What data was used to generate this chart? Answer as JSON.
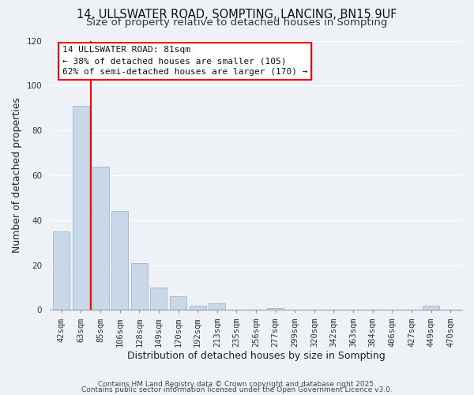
{
  "title": "14, ULLSWATER ROAD, SOMPTING, LANCING, BN15 9UF",
  "subtitle": "Size of property relative to detached houses in Sompting",
  "xlabel": "Distribution of detached houses by size in Sompting",
  "ylabel": "Number of detached properties",
  "bar_labels": [
    "42sqm",
    "63sqm",
    "85sqm",
    "106sqm",
    "128sqm",
    "149sqm",
    "170sqm",
    "192sqm",
    "213sqm",
    "235sqm",
    "256sqm",
    "277sqm",
    "299sqm",
    "320sqm",
    "342sqm",
    "363sqm",
    "384sqm",
    "406sqm",
    "427sqm",
    "449sqm",
    "470sqm"
  ],
  "bar_values": [
    35,
    91,
    64,
    44,
    21,
    10,
    6,
    2,
    3,
    0,
    0,
    1,
    0,
    0,
    0,
    0,
    0,
    0,
    0,
    2,
    0
  ],
  "bar_color": "#c8d8e8",
  "bar_edge_color": "#a0b8cc",
  "vline_color": "red",
  "ylim": [
    0,
    120
  ],
  "yticks": [
    0,
    20,
    40,
    60,
    80,
    100,
    120
  ],
  "annotation_title": "14 ULLSWATER ROAD: 81sqm",
  "annotation_line1": "← 38% of detached houses are smaller (105)",
  "annotation_line2": "62% of semi-detached houses are larger (170) →",
  "annotation_box_color": "red",
  "footer1": "Contains HM Land Registry data © Crown copyright and database right 2025.",
  "footer2": "Contains public sector information licensed under the Open Government Licence v3.0.",
  "background_color": "#eef2f6",
  "grid_color": "#ffffff",
  "title_fontsize": 10.5,
  "subtitle_fontsize": 9.5,
  "axis_label_fontsize": 9,
  "tick_fontsize": 7.5,
  "annotation_fontsize": 8,
  "footer_fontsize": 6.5
}
